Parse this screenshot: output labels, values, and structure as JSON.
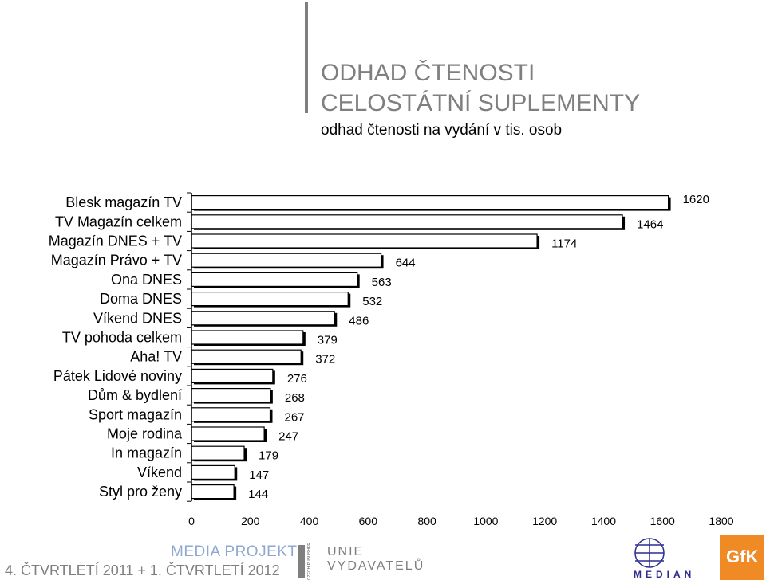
{
  "header": {
    "title_line1": "ODHAD ČTENOSTI",
    "title_line2": "CELOSTÁTNÍ SUPLEMENTY",
    "subtitle": "odhad čtenosti na vydání v tis. osob"
  },
  "chart_data": {
    "type": "bar",
    "orientation": "horizontal",
    "categories": [
      "Blesk magazín TV",
      "TV Magazín celkem",
      "Magazín DNES + TV",
      "Magazín Právo + TV",
      "Ona DNES",
      "Doma DNES",
      "Víkend DNES",
      "TV pohoda celkem",
      "Aha! TV",
      "Pátek Lidové noviny",
      "Dům & bydlení",
      "Sport magazín",
      "Moje rodina",
      "In magazín",
      "Víkend",
      "Styl pro ženy"
    ],
    "values": [
      1620,
      1464,
      1174,
      644,
      563,
      532,
      486,
      379,
      372,
      276,
      268,
      267,
      247,
      179,
      147,
      144
    ],
    "value_labels": [
      "1620",
      "1464",
      "1174",
      "644",
      "563",
      "532",
      "486",
      "379",
      "372",
      "276",
      "268",
      "267",
      "247",
      "179",
      "147",
      "144"
    ],
    "xlim": [
      0,
      1800
    ],
    "xticks": [
      0,
      200,
      400,
      600,
      800,
      1000,
      1200,
      1400,
      1600,
      1800
    ],
    "xtick_labels": [
      "0",
      "200",
      "400",
      "600",
      "800",
      "1000",
      "1200",
      "1400",
      "1600",
      "1800"
    ],
    "bar_color": "#ffffff",
    "bar_edge_color": "#000000",
    "grid": false
  },
  "footer": {
    "period": "4. ČTVRTLETÍ 2011 + 1. ČTVRTLETÍ 2012",
    "project": "MEDIA PROJEKT",
    "cpa_text": "CZECH PUBLISHERS ASSOCIATION",
    "uv_line1": "UNIE",
    "uv_line2": "VYDAVATELŮ",
    "median": "MEDIAN",
    "gfk": "GfK",
    "median_color": "#2d2d8f",
    "gfk_color": "#f08a24"
  }
}
